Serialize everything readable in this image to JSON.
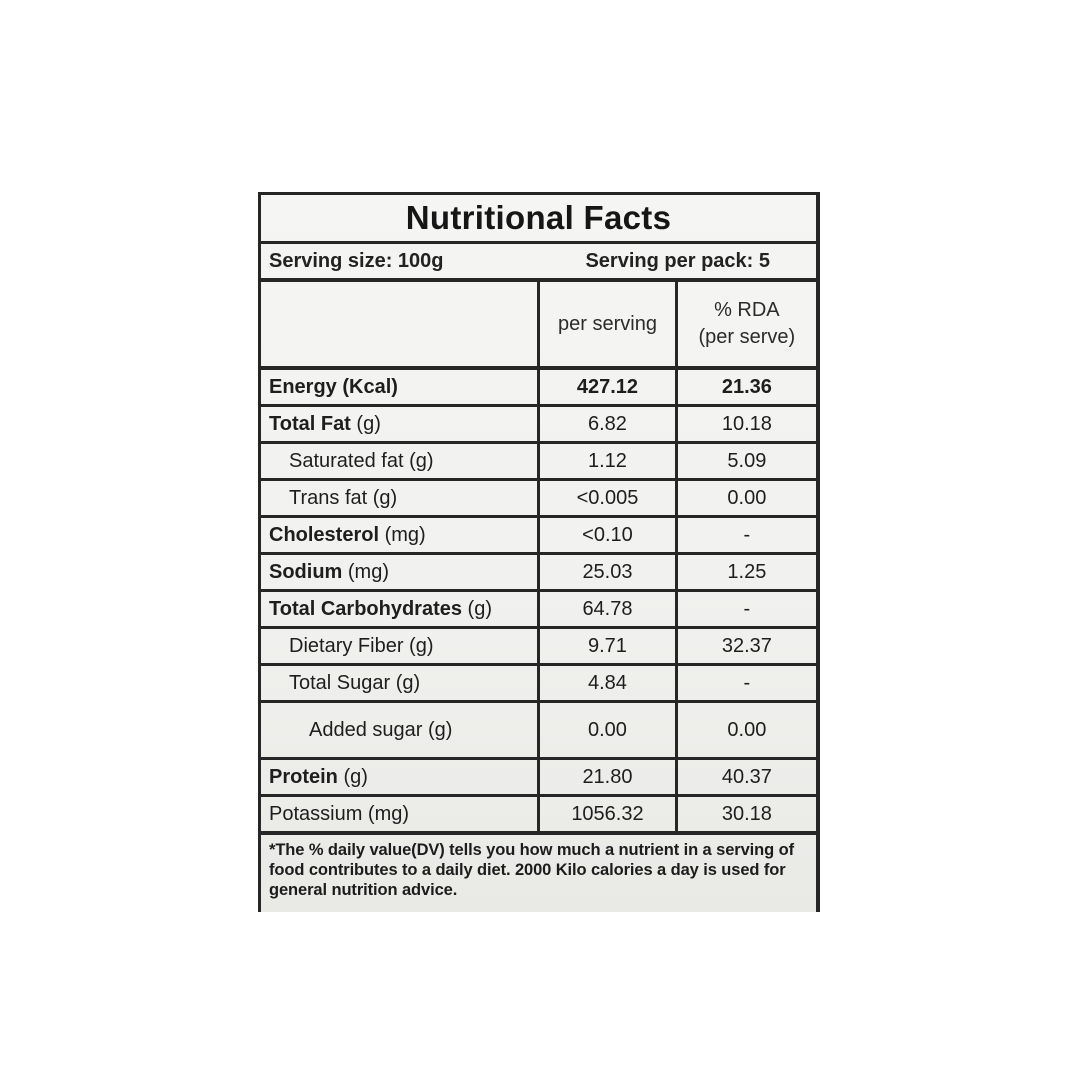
{
  "label": {
    "title": "Nutritional Facts",
    "serving_size": "Serving size: 100g",
    "serving_per_pack": "Serving per pack: 5",
    "columns": {
      "per_serving": "per serving",
      "rda_line1": "% RDA",
      "rda_line2": "(per serve)"
    },
    "rows": [
      {
        "name": "Energy",
        "unit": " (Kcal)",
        "per_serving": "427.12",
        "rda": "21.36"
      },
      {
        "name": "Total Fat",
        "unit": " (g)",
        "per_serving": "6.82",
        "rda": "10.18"
      },
      {
        "name": "Saturated fat",
        "unit": " (g)",
        "per_serving": "1.12",
        "rda": "5.09"
      },
      {
        "name": "Trans fat",
        "unit": " (g)",
        "per_serving": "<0.005",
        "rda": "0.00"
      },
      {
        "name": "Cholesterol",
        "unit": " (mg)",
        "per_serving": "<0.10",
        "rda": "-"
      },
      {
        "name": "Sodium",
        "unit": " (mg)",
        "per_serving": "25.03",
        "rda": "1.25"
      },
      {
        "name": "Total Carbohydrates",
        "unit": " (g)",
        "per_serving": "64.78",
        "rda": "-"
      },
      {
        "name": "Dietary Fiber",
        "unit": " (g)",
        "per_serving": "9.71",
        "rda": "32.37"
      },
      {
        "name": "Total Sugar",
        "unit": " (g)",
        "per_serving": "4.84",
        "rda": "-"
      },
      {
        "name": "Added sugar",
        "unit": " (g)",
        "per_serving": "0.00",
        "rda": "0.00"
      },
      {
        "name": "Protein",
        "unit": " (g)",
        "per_serving": "21.80",
        "rda": "40.37"
      },
      {
        "name": "Potassium",
        "unit": " (mg)",
        "per_serving": "1056.32",
        "rda": "30.18"
      }
    ],
    "footnote": "*The % daily value(DV) tells you how much a nutrient in a serving of food contributes to a daily diet. 2000 Kilo calories a day is used for general nutrition advice.",
    "colors": {
      "border": "#262626",
      "text": "#1e1e1e",
      "label_background": "#f1f1ef",
      "page_background": "#ffffff"
    }
  }
}
